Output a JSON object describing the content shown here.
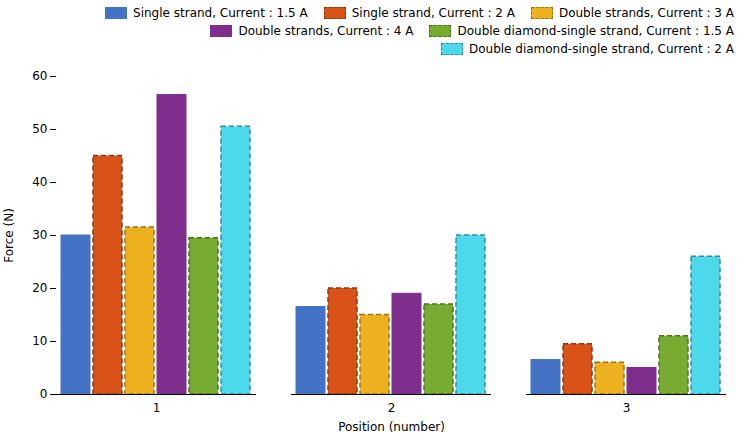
{
  "chart_data": {
    "type": "bar",
    "categories": [
      "1",
      "2",
      "3"
    ],
    "xlabel": "Position (number)",
    "ylabel": "Force (N)",
    "series": [
      {
        "name": "Single strand, Current : 1.5 A",
        "color": "#4472C4",
        "line_style": "solid",
        "values": [
          30,
          16.5,
          6.5
        ]
      },
      {
        "name": "Single strand, Current : 2 A",
        "color": "#D95319",
        "line_style": "dashed",
        "values": [
          45,
          20,
          9.5
        ]
      },
      {
        "name": "Double strands, Current : 3 A",
        "color": "#EDB120",
        "line_style": "dashed",
        "values": [
          31.5,
          15,
          6
        ]
      },
      {
        "name": "Double strands, Current : 4 A",
        "color": "#7E2F8E",
        "line_style": "solid",
        "values": [
          56.5,
          19,
          5
        ]
      },
      {
        "name": "Double diamond-single strand, Current : 1.5 A",
        "color": "#77AC30",
        "line_style": "dashed",
        "values": [
          29.5,
          17,
          11
        ]
      },
      {
        "name": "Double diamond-single strand, Current : 2 A",
        "color": "#4DD9EC",
        "line_style": "dashed",
        "values": [
          50.5,
          30,
          26
        ]
      }
    ],
    "ylim": [
      0,
      60
    ],
    "yticks": [
      0,
      10,
      20,
      30,
      40,
      50,
      60
    ],
    "grid": false,
    "legend": "upper right"
  }
}
